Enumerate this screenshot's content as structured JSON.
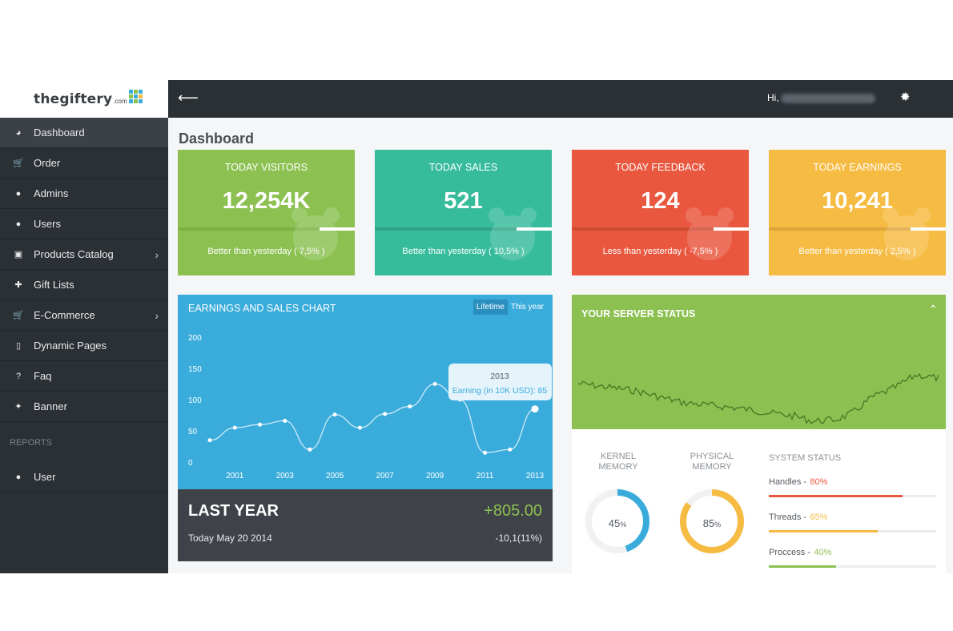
{
  "brand": {
    "name": "thegiftery",
    "suffix": ".com",
    "mark_colors": [
      "#3aacdb",
      "#8cc152",
      "#3aacdb",
      "#8cc152",
      "#3aacdb",
      "#f6bb42",
      "#3aacdb",
      "#8cc152",
      "#3aacdb"
    ]
  },
  "sidebar": {
    "items": [
      {
        "label": "Dashboard",
        "icon": "dashboard-icon",
        "glyph": "◕",
        "active": true,
        "chevron": false
      },
      {
        "label": "Order",
        "icon": "cart-icon",
        "glyph": "🛒",
        "active": false,
        "chevron": false
      },
      {
        "label": "Admins",
        "icon": "user-icon",
        "glyph": "●",
        "active": false,
        "chevron": false
      },
      {
        "label": "Users",
        "icon": "user-icon",
        "glyph": "●",
        "active": false,
        "chevron": false
      },
      {
        "label": "Products Catalog",
        "icon": "briefcase-icon",
        "glyph": "▣",
        "active": false,
        "chevron": true
      },
      {
        "label": "Gift Lists",
        "icon": "gift-icon",
        "glyph": "✚",
        "active": false,
        "chevron": false
      },
      {
        "label": "E-Commerce",
        "icon": "cart-icon",
        "glyph": "🛒",
        "active": false,
        "chevron": true
      },
      {
        "label": "Dynamic Pages",
        "icon": "file-icon",
        "glyph": "▯",
        "active": false,
        "chevron": false
      },
      {
        "label": "Faq",
        "icon": "question-icon",
        "glyph": "?",
        "active": false,
        "chevron": false
      },
      {
        "label": "Banner",
        "icon": "magic-wand-icon",
        "glyph": "✦",
        "active": false,
        "chevron": false
      }
    ],
    "section_label": "REPORTS",
    "report_items": [
      {
        "label": "User",
        "icon": "user-icon",
        "glyph": "●"
      }
    ],
    "chevron_glyph": "›"
  },
  "topbar": {
    "back_glyph": "⟵",
    "greeting": "Hi,",
    "gear_glyph": "✹"
  },
  "page": {
    "title": "Dashboard"
  },
  "stats": [
    {
      "title": "TODAY VISITORS",
      "value": "12,254K",
      "note": "Better than yesterday ( 7,5% )",
      "color": "#8cc152",
      "bar": "#7ab143",
      "icon": "paw-icon"
    },
    {
      "title": "TODAY SALES",
      "value": "521",
      "note": "Better than yesterday ( 10,5% )",
      "color": "#37bc9b",
      "bar": "#2fa386",
      "icon": "tools-icon"
    },
    {
      "title": "TODAY FEEDBACK",
      "value": "124",
      "note": "Less than yesterday ( -7,5% )",
      "color": "#e9573f",
      "bar": "#cf4a34",
      "icon": "chat-icon"
    },
    {
      "title": "TODAY EARNINGS",
      "value": "10,241",
      "note": "Better than yesterday ( 2,5% )",
      "color": "#f6bb42",
      "bar": "#dca638",
      "icon": "money-icon"
    }
  ],
  "earnings": {
    "title": "EARNINGS AND SALES CHART",
    "tabs": [
      "Lifetime",
      "This year"
    ],
    "tooltip": {
      "title": "2013",
      "text": "Earning (in 10K USD): 85"
    }
  },
  "chart_data": {
    "type": "line",
    "title": "EARNINGS AND SALES CHART",
    "x": [
      2000,
      2001,
      2002,
      2003,
      2004,
      2005,
      2006,
      2007,
      2008,
      2009,
      2010,
      2011,
      2012,
      2013
    ],
    "x_ticks": [
      2001,
      2003,
      2005,
      2007,
      2009,
      2011,
      2013
    ],
    "y_ticks": [
      0,
      50,
      100,
      150,
      200
    ],
    "ylim": [
      0,
      200
    ],
    "series": [
      {
        "name": "Earning (in 10K USD)",
        "values": [
          35,
          55,
          60,
          66,
          20,
          76,
          55,
          77,
          89,
          125,
          100,
          15,
          20,
          85
        ]
      }
    ],
    "grid": false,
    "legend": "none"
  },
  "last_year": {
    "title": "LAST YEAR",
    "value": "+805.00",
    "date": "Today May 20 2014",
    "change": "-10,1(11%)"
  },
  "server": {
    "title": "YOUR SERVER STATUS",
    "toggle_glyph": "⌃",
    "kernel": {
      "label_line1": "KERNEL",
      "label_line2": "MEMORY",
      "value": 45,
      "unit": "%",
      "color": "#3aacdb"
    },
    "physical": {
      "label_line1": "PHYSICAL",
      "label_line2": "MEMORY",
      "value": 85,
      "unit": "%",
      "color": "#f6bb42"
    },
    "system_title": "SYSTEM STATUS",
    "system": [
      {
        "label": "Handles -",
        "pct": "80%",
        "value": 0.8,
        "color": "#e9573f"
      },
      {
        "label": "Threads -",
        "pct": "65%",
        "value": 0.65,
        "color": "#f6bb42"
      },
      {
        "label": "Proccess -",
        "pct": "40%",
        "value": 0.4,
        "color": "#8cc152"
      }
    ]
  }
}
